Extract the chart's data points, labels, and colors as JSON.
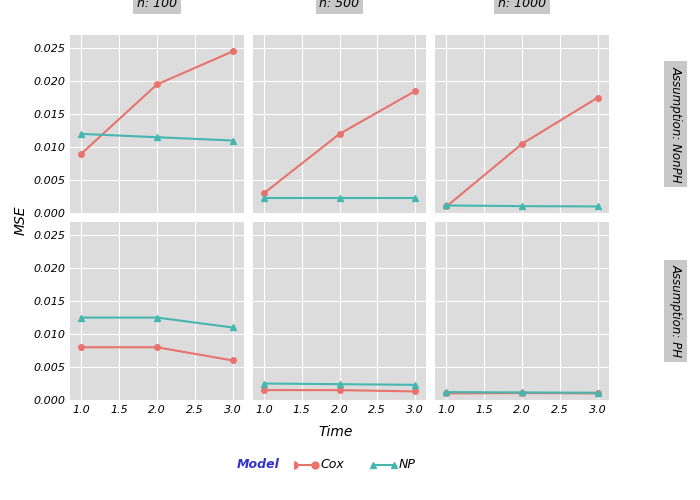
{
  "time": [
    1.0,
    2.0,
    3.0
  ],
  "panels": {
    "NonPH": {
      "n100": {
        "Cox": [
          0.009,
          0.0195,
          0.0245
        ],
        "NP": [
          0.012,
          0.0115,
          0.011
        ]
      },
      "n500": {
        "Cox": [
          0.003,
          0.012,
          0.0185
        ],
        "NP": [
          0.00225,
          0.00225,
          0.00225
        ]
      },
      "n1000": {
        "Cox": [
          0.001,
          0.0105,
          0.0175
        ],
        "NP": [
          0.00115,
          0.00105,
          0.001
        ]
      }
    },
    "PH": {
      "n100": {
        "Cox": [
          0.008,
          0.008,
          0.006
        ],
        "NP": [
          0.0125,
          0.0125,
          0.011
        ]
      },
      "n500": {
        "Cox": [
          0.0015,
          0.0015,
          0.0013
        ],
        "NP": [
          0.0025,
          0.0024,
          0.0023
        ]
      },
      "n1000": {
        "Cox": [
          0.001,
          0.00105,
          0.001
        ],
        "NP": [
          0.0012,
          0.00115,
          0.0011
        ]
      }
    }
  },
  "col_labels": [
    "n: 100",
    "n: 500",
    "n: 1000"
  ],
  "row_labels": [
    "Assumption: NonPH",
    "Assumption: PH"
  ],
  "xlabel": "Time",
  "ylabel": "MSE",
  "ylim": [
    0.0,
    0.027
  ],
  "yticks": [
    0.0,
    0.005,
    0.01,
    0.015,
    0.02,
    0.025
  ],
  "xticks": [
    1.0,
    1.5,
    2.0,
    2.5,
    3.0
  ],
  "cox_color": "#E8736C",
  "np_color": "#44B8B0",
  "panel_bg": "#E8E8E8",
  "plot_bg": "#DCDCDC",
  "grid_color": "#FFFFFF",
  "legend_title_color": "#3333CC",
  "legend_title": "Model",
  "legend_cox": "Cox",
  "legend_np": "NP"
}
